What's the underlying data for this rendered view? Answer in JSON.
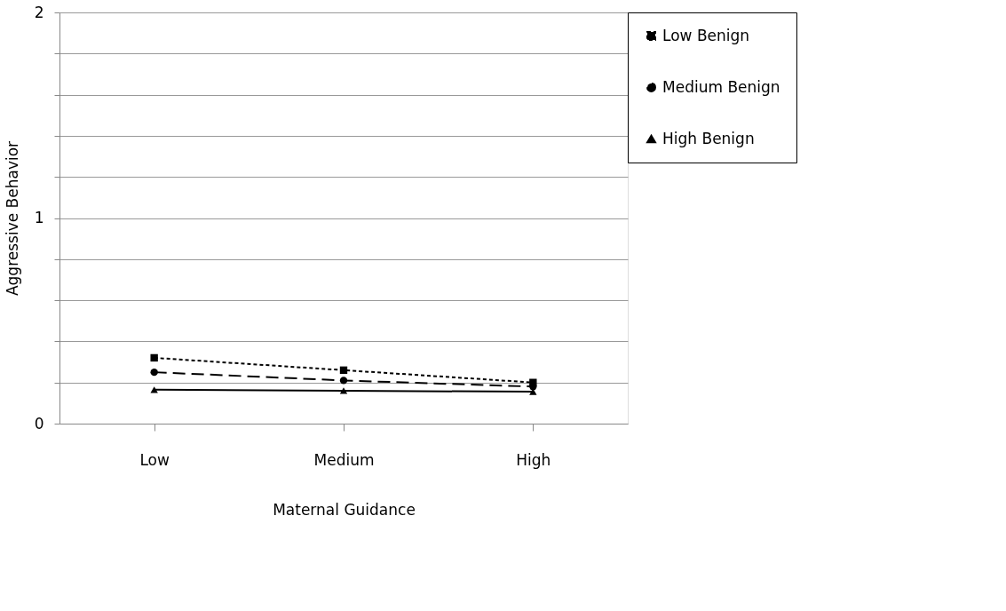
{
  "chart_data": {
    "type": "line",
    "xlabel": "Maternal Guidance",
    "ylabel": "Aggressive Behavior",
    "categories": [
      "Low",
      "Medium",
      "High"
    ],
    "series": [
      {
        "name": "Low Benign",
        "color": "#000000",
        "values": [
          0.32,
          0.26,
          0.2
        ],
        "marker": "square",
        "line_style": "dotted"
      },
      {
        "name": "Medium Benign",
        "color": "#000000",
        "values": [
          0.25,
          0.21,
          0.18
        ],
        "marker": "circle",
        "line_style": "dashed"
      },
      {
        "name": "High Benign",
        "color": "#000000",
        "values": [
          0.165,
          0.16,
          0.155
        ],
        "marker": "triangle",
        "line_style": "solid"
      }
    ],
    "ylim": [
      0,
      2
    ],
    "yticks": [
      0,
      {
        "value": 0.2,
        "label": null
      },
      {
        "value": 0.4,
        "label": null
      },
      {
        "value": 0.6,
        "label": null
      },
      {
        "value": 0.8,
        "label": null
      },
      1,
      {
        "value": 1.2,
        "label": null
      },
      {
        "value": 1.4,
        "label": null
      },
      {
        "value": 1.6,
        "label": null
      },
      {
        "value": 1.8,
        "label": null
      },
      2
    ],
    "grid": "y",
    "legend": "right"
  }
}
